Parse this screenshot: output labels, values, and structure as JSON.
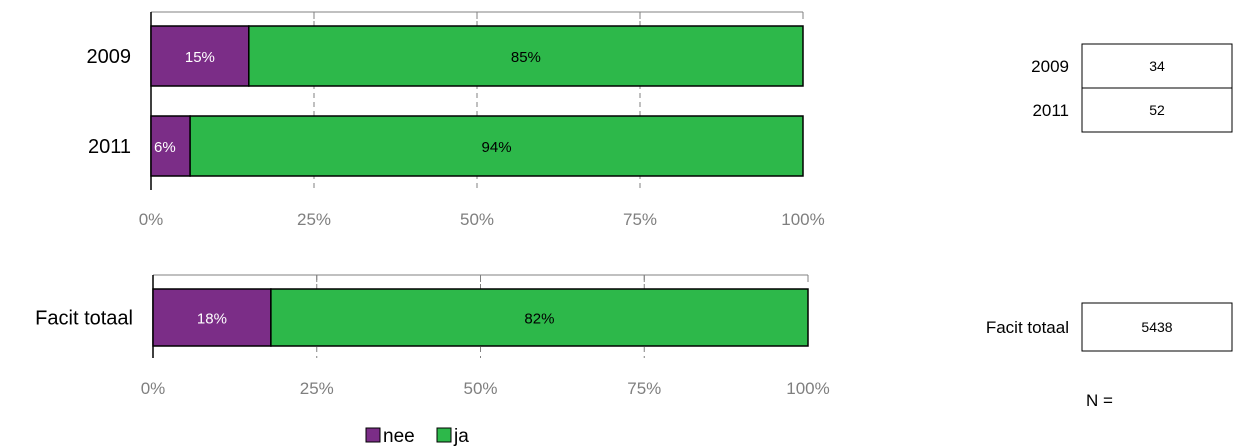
{
  "colors": {
    "nee": "#7b2d87",
    "ja": "#2db84a",
    "grid": "#808080",
    "frame": "#000000"
  },
  "legend": {
    "nee": "nee",
    "ja": "ja"
  },
  "n_table": {
    "label": "N =",
    "rows": [
      {
        "year": "2009",
        "n": "34"
      },
      {
        "year": "2011",
        "n": "52"
      }
    ],
    "total": {
      "label": "Facit totaal",
      "n": "5438"
    }
  },
  "chart_data": [
    {
      "type": "bar",
      "orientation": "horizontal",
      "stacked": "percent",
      "categories": [
        "2009",
        "2011"
      ],
      "series": [
        {
          "name": "nee",
          "values": [
            15,
            6
          ],
          "labels": [
            "15%",
            "6%"
          ]
        },
        {
          "name": "ja",
          "values": [
            85,
            94
          ],
          "labels": [
            "85%",
            "94%"
          ]
        }
      ],
      "xlim": [
        0,
        100
      ],
      "xticks": [
        "0%",
        "25%",
        "50%",
        "75%",
        "100%"
      ],
      "grid": "vertical dashed"
    },
    {
      "type": "bar",
      "orientation": "horizontal",
      "stacked": "percent",
      "categories": [
        "Facit totaal"
      ],
      "series": [
        {
          "name": "nee",
          "values": [
            18
          ],
          "labels": [
            "18%"
          ]
        },
        {
          "name": "ja",
          "values": [
            82
          ],
          "labels": [
            "82%"
          ]
        }
      ],
      "xlim": [
        0,
        100
      ],
      "xticks": [
        "0%",
        "25%",
        "50%",
        "75%",
        "100%"
      ],
      "grid": "vertical dashed",
      "legend": "bottom"
    }
  ]
}
